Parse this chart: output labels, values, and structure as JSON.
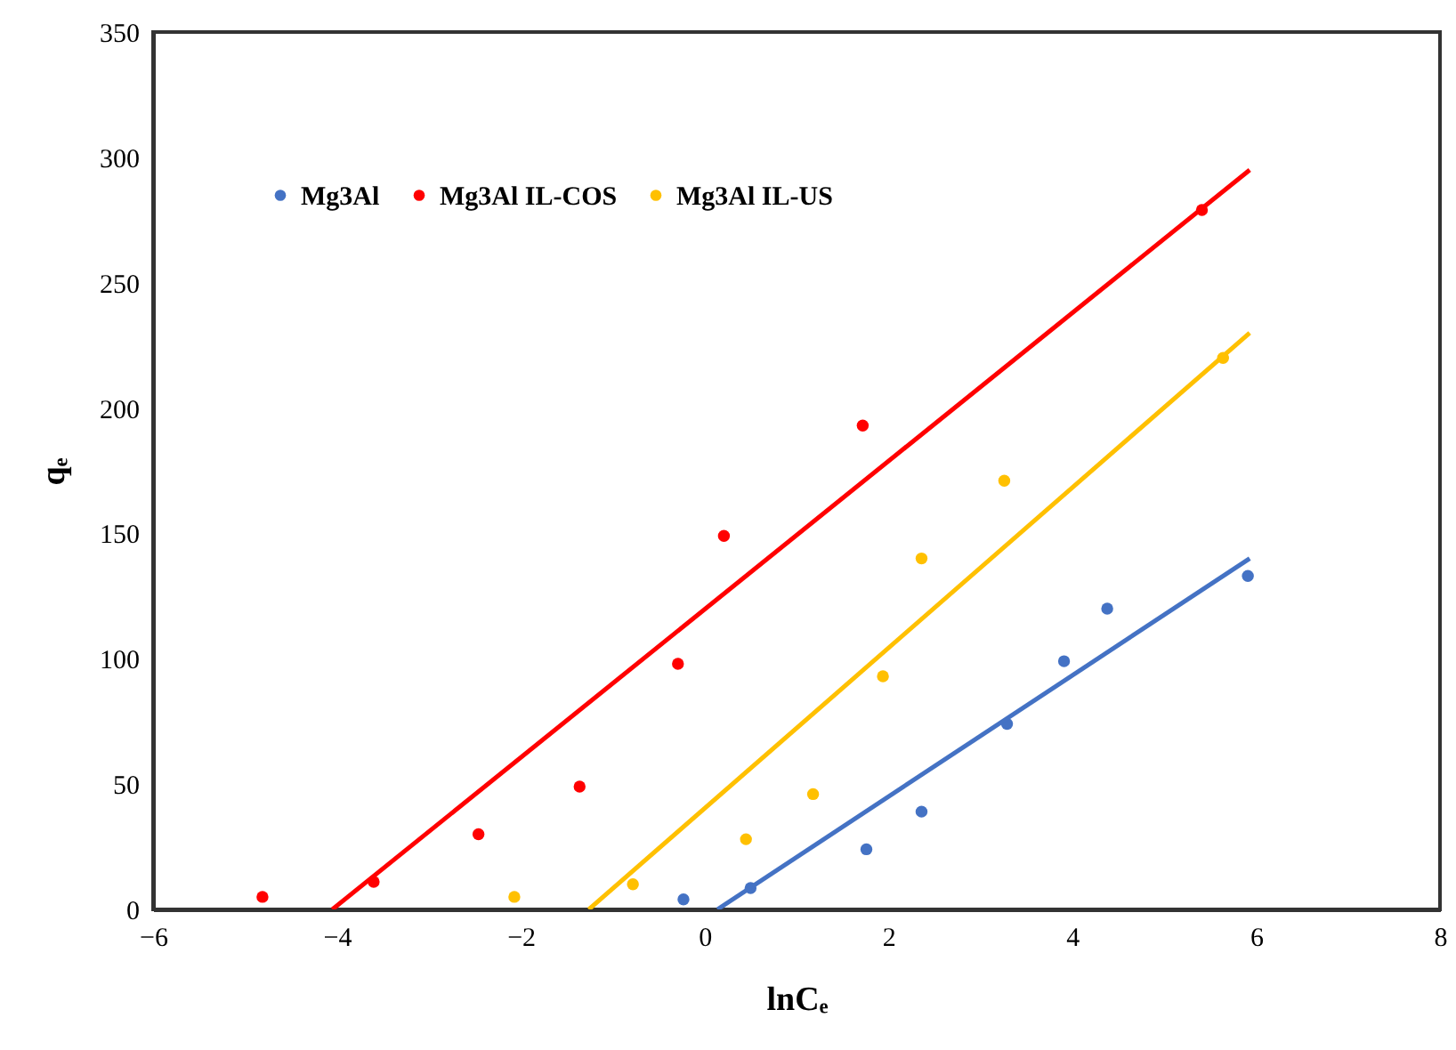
{
  "chart_data": {
    "type": "scatter",
    "xlabel": "lnCₑ",
    "ylabel": "qₑ",
    "xlim": [
      -6,
      8
    ],
    "ylim": [
      0,
      350
    ],
    "xticks": [
      -6,
      -4,
      -2,
      0,
      2,
      4,
      6,
      8
    ],
    "yticks": [
      0,
      50,
      100,
      150,
      200,
      250,
      300,
      350
    ],
    "grid": false,
    "legend": "top left",
    "marker": "circle",
    "series": [
      {
        "name": "Mg3Al",
        "color": "#4472c4",
        "x": [
          -0.23,
          0.5,
          1.76,
          2.36,
          3.29,
          3.91,
          4.38,
          5.91
        ],
        "values": [
          4,
          8.5,
          24,
          39,
          74,
          99,
          120,
          133
        ]
      },
      {
        "name": "Mg3Al IL-COS",
        "color": "#ff0000",
        "x": [
          -4.81,
          -3.6,
          -2.46,
          -1.36,
          -0.29,
          0.21,
          1.72,
          5.41
        ],
        "values": [
          5,
          11,
          30,
          49,
          98,
          149,
          193,
          279
        ]
      },
      {
        "name": "Mg3Al IL-US",
        "color": "#ffc000",
        "x": [
          -2.07,
          -0.78,
          0.45,
          1.18,
          1.94,
          2.36,
          3.26,
          5.64
        ],
        "values": [
          5,
          10,
          28,
          46,
          93,
          140,
          171,
          220
        ]
      },
      {
        "type": "line",
        "color": "#4472c4",
        "line_style": "solid",
        "marker": "none",
        "x": [
          0.14,
          5.93
        ],
        "values": [
          0,
          140
        ]
      },
      {
        "type": "line",
        "color": "#ff0000",
        "line_style": "solid",
        "marker": "none",
        "x": [
          -4.05,
          5.93
        ],
        "values": [
          0,
          295
        ]
      },
      {
        "type": "line",
        "color": "#ffc000",
        "line_style": "solid",
        "marker": "none",
        "x": [
          -1.26,
          5.93
        ],
        "values": [
          0,
          230
        ]
      }
    ]
  }
}
